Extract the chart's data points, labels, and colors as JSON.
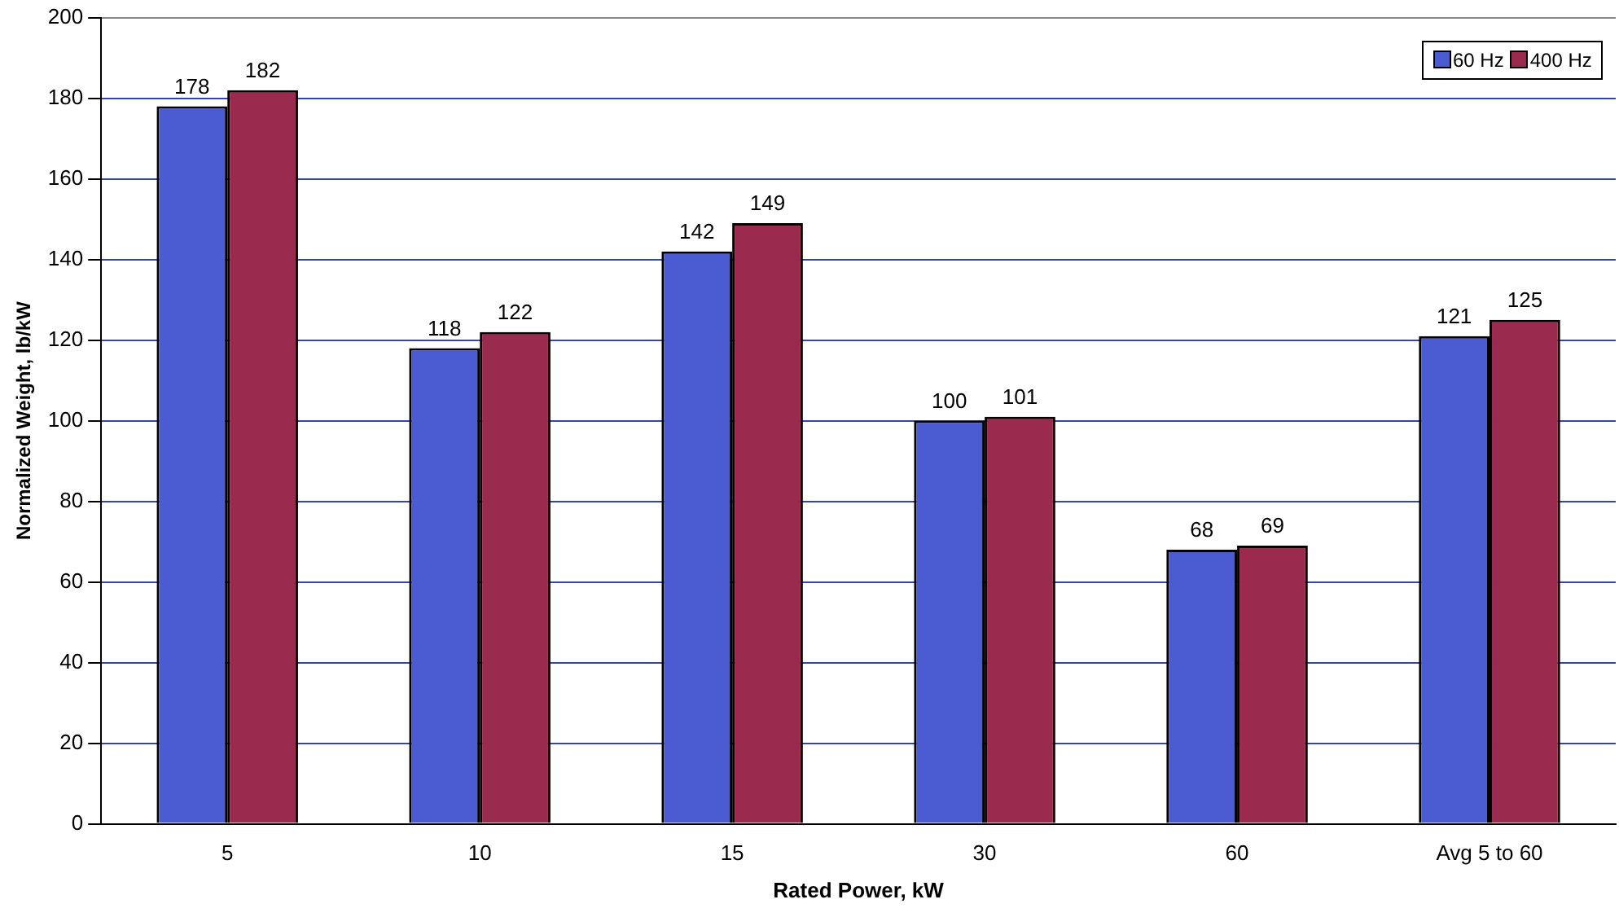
{
  "chart_data": {
    "type": "bar",
    "xlabel": "Rated Power, kW",
    "ylabel": "Normalized Weight, lb/kW",
    "categories": [
      "5",
      "10",
      "15",
      "30",
      "60",
      "Avg 5 to 60"
    ],
    "series": [
      {
        "name": "60 Hz",
        "color": "#4b5bd1",
        "values": [
          178,
          118,
          142,
          100,
          68,
          121
        ]
      },
      {
        "name": "400 Hz",
        "color": "#9b2a4f",
        "values": [
          182,
          122,
          149,
          101,
          69,
          125
        ]
      }
    ],
    "ylim": [
      0,
      200
    ],
    "yticks": [
      0,
      20,
      40,
      60,
      80,
      100,
      120,
      140,
      160,
      180,
      200
    ],
    "grid": "y",
    "legend": "top right",
    "data_labels": true
  }
}
